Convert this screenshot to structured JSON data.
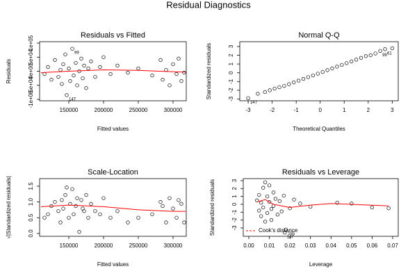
{
  "title": "Residual Diagnostics",
  "chart_data": [
    {
      "type": "scatter",
      "title": "Residuals vs Fitted",
      "x_label": "Fitted values",
      "y_label": "Residuals",
      "x": [
        115000,
        120000,
        125000,
        130000,
        135000,
        138000,
        140000,
        142000,
        145000,
        147000,
        150000,
        152000,
        155000,
        157000,
        160000,
        162000,
        165000,
        168000,
        170000,
        172000,
        175000,
        178000,
        182000,
        188000,
        195000,
        200000,
        210000,
        220000,
        235000,
        250000,
        270000,
        282000,
        285000,
        290000,
        295000,
        300000,
        305000,
        308000,
        312000,
        316000
      ],
      "values": [
        -10000,
        15000,
        -30000,
        40000,
        -20000,
        5000,
        -45000,
        25000,
        60000,
        -85000,
        10000,
        -35000,
        80000,
        -15000,
        30000,
        -50000,
        0,
        45000,
        -25000,
        20000,
        -60000,
        10000,
        35000,
        -20000,
        15000,
        50000,
        -10000,
        20000,
        -5000,
        10000,
        -15000,
        40000,
        -30000,
        5000,
        -50000,
        25000,
        -10000,
        45000,
        -35000,
        -5000
      ],
      "xlim": [
        108000,
        319000
      ],
      "ylim": [
        -105000,
        105000
      ],
      "xticks": [
        150000,
        200000,
        250000,
        300000
      ],
      "yticks": [
        {
          "value": -100000,
          "label": "-1e+05"
        },
        {
          "value": -50000,
          "label": "-5e+04"
        },
        {
          "value": 0,
          "label": "0e+00"
        },
        {
          "value": 50000,
          "label": "5e+04"
        },
        {
          "value": 100000,
          "label": "1e+05"
        }
      ],
      "smooth": {
        "x": [
          110000,
          150000,
          200000,
          250000,
          300000,
          318000
        ],
        "values": [
          -5000,
          0,
          5000,
          3000,
          -2000,
          -3000
        ],
        "color": "#ff0000"
      },
      "annotations": [
        {
          "text": "99",
          "x": 155000,
          "y": 80000
        },
        {
          "text": "147",
          "x": 147000,
          "y": -85000
        }
      ]
    },
    {
      "type": "scatter",
      "title": "Normal Q-Q",
      "x_label": "Theoretical Quantiles",
      "y_label": "Standardized residuals",
      "x": [
        -3,
        -2.6,
        -2.3,
        -2.1,
        -1.9,
        -1.7,
        -1.5,
        -1.3,
        -1.1,
        -0.9,
        -0.7,
        -0.5,
        -0.3,
        -0.1,
        0.1,
        0.3,
        0.5,
        0.7,
        0.9,
        1.1,
        1.3,
        1.5,
        1.7,
        1.9,
        2.1,
        2.3,
        2.5,
        2.7,
        3
      ],
      "values": [
        -2.9,
        -2.4,
        -2.2,
        -2.0,
        -1.8,
        -1.65,
        -1.5,
        -1.3,
        -1.1,
        -0.9,
        -0.7,
        -0.5,
        -0.3,
        -0.1,
        0.1,
        0.3,
        0.5,
        0.7,
        0.9,
        1.1,
        1.3,
        1.5,
        1.7,
        1.9,
        2.0,
        2.2,
        2.5,
        2.7,
        2.8
      ],
      "xlim": [
        -3.35,
        3.25
      ],
      "ylim": [
        -3.2,
        3.55
      ],
      "xticks": [
        -3,
        -2,
        -1,
        0,
        1,
        2,
        3
      ],
      "yticks": [
        -3,
        -2,
        -1,
        0,
        1,
        2,
        3
      ],
      "annotations": [
        {
          "text": "147",
          "x": -3,
          "y": -2.9
        },
        {
          "text": "99",
          "x": 2.5,
          "y": 2.5
        },
        {
          "text": "61",
          "x": 2.7,
          "y": 2.7
        }
      ]
    },
    {
      "type": "scatter",
      "title": "Scale-Location",
      "x_label": "Fitted values",
      "y_label": "√|Standardized residuals|",
      "x": [
        115000,
        120000,
        125000,
        130000,
        135000,
        138000,
        140000,
        142000,
        145000,
        147000,
        150000,
        152000,
        155000,
        157000,
        160000,
        162000,
        165000,
        168000,
        170000,
        172000,
        175000,
        178000,
        182000,
        188000,
        195000,
        200000,
        210000,
        220000,
        235000,
        250000,
        270000,
        282000,
        285000,
        290000,
        295000,
        300000,
        305000,
        308000,
        312000,
        316000
      ],
      "values": [
        0.5,
        0.61,
        0.87,
        1.0,
        0.71,
        0.35,
        1.06,
        0.79,
        1.22,
        1.46,
        0.5,
        0.94,
        1.41,
        0.61,
        0.87,
        1.12,
        0.05,
        1.06,
        0.79,
        0.71,
        1.22,
        0.5,
        0.94,
        0.71,
        0.61,
        1.12,
        0.5,
        0.71,
        0.35,
        0.5,
        0.61,
        1.0,
        0.87,
        0.35,
        1.12,
        0.79,
        0.5,
        1.06,
        0.94,
        0.35
      ],
      "xlim": [
        108000,
        319000
      ],
      "ylim": [
        -0.09,
        1.74
      ],
      "xticks": [
        150000,
        200000,
        250000,
        300000
      ],
      "yticks": [
        {
          "value": 0,
          "label": "0.0"
        },
        {
          "value": 0.5,
          "label": "0.5"
        },
        {
          "value": 1,
          "label": "1.0"
        },
        {
          "value": 1.5,
          "label": "1.5"
        }
      ],
      "smooth": {
        "x": [
          110000,
          150000,
          200000,
          250000,
          300000,
          318000
        ],
        "values": [
          0.85,
          0.9,
          0.85,
          0.75,
          0.7,
          0.7
        ],
        "color": "#ff0000"
      }
    },
    {
      "type": "scatter",
      "title": "Residuals vs Leverage",
      "x_label": "Leverage",
      "y_label": "Standardized residuals",
      "x": [
        0.004,
        0.005,
        0.005,
        0.006,
        0.006,
        0.007,
        0.007,
        0.008,
        0.008,
        0.009,
        0.009,
        0.01,
        0.01,
        0.011,
        0.011,
        0.012,
        0.012,
        0.013,
        0.014,
        0.015,
        0.016,
        0.017,
        0.018,
        0.0175,
        0.02,
        0.022,
        0.025,
        0.03,
        0.043,
        0.05,
        0.06,
        0.068
      ],
      "values": [
        0.5,
        -0.8,
        1.2,
        -1.5,
        0.2,
        2.1,
        -0.4,
        2.8,
        -2.2,
        1.0,
        -1.1,
        0.3,
        2.4,
        -0.6,
        -2.0,
        1.5,
        -0.2,
        0.7,
        -1.3,
        0.4,
        -0.9,
        1.1,
        -3.2,
        -3.6,
        -0.5,
        0.6,
        0.1,
        -0.3,
        0.2,
        0.1,
        -0.4,
        -0.5
      ],
      "xlim": [
        -0.0027,
        0.0727
      ],
      "ylim": [
        -4.06,
        3.26
      ],
      "xticks": [
        {
          "value": 0,
          "label": "0.00"
        },
        {
          "value": 0.01,
          "label": "0.01"
        },
        {
          "value": 0.02,
          "label": "0.02"
        },
        {
          "value": 0.03,
          "label": "0.03"
        },
        {
          "value": 0.04,
          "label": "0.04"
        },
        {
          "value": 0.05,
          "label": "0.05"
        },
        {
          "value": 0.06,
          "label": "0.06"
        },
        {
          "value": 0.07,
          "label": "0.07"
        }
      ],
      "yticks": [
        -3,
        -2,
        -1,
        0,
        1,
        2,
        3
      ],
      "smooth": {
        "x": [
          0.004,
          0.008,
          0.012,
          0.02,
          0.03,
          0.04,
          0.068
        ],
        "values": [
          0.3,
          0.6,
          0,
          -0.4,
          -0.1,
          0.1,
          -0.2
        ],
        "color": "#ff0000"
      },
      "annotations": [
        {
          "text": "165",
          "x": 0.018,
          "y": -3.2
        },
        {
          "text": "147",
          "x": 0.0175,
          "y": -3.6
        }
      ],
      "legend": {
        "text": "Cook's distance",
        "position": "bottomleft",
        "color": "#ff0000"
      }
    }
  ]
}
